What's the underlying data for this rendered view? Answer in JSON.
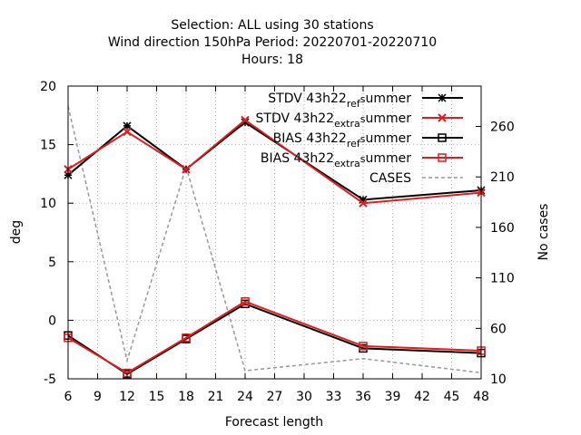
{
  "chart_data": {
    "type": "line",
    "title_lines": [
      "Selection: ALL using    30 stations",
      "Wind direction 150hPa   Period: 20220701-20220710",
      "Hours:  18"
    ],
    "xlabel": "Forecast length",
    "ylabel": "deg",
    "y2label": "No cases",
    "xlim": [
      6,
      48
    ],
    "ylim": [
      -5,
      20
    ],
    "y2lim": [
      10,
      300
    ],
    "xticks": [
      6,
      9,
      12,
      15,
      18,
      21,
      24,
      27,
      30,
      33,
      36,
      39,
      42,
      45,
      48
    ],
    "yticks": [
      -5,
      0,
      5,
      10,
      15,
      20
    ],
    "y2ticks": [
      10,
      60,
      110,
      160,
      210,
      260
    ],
    "grid": true,
    "legend_position": "top-right",
    "x": [
      6,
      12,
      18,
      24,
      36,
      48
    ],
    "series": [
      {
        "name": "STDV 43h22_ref_summer",
        "legend_parts": [
          "STDV 43h22",
          "ref",
          "s",
          "ummer"
        ],
        "color": "#000000",
        "marker": "star",
        "axis": "left",
        "values": [
          12.4,
          16.6,
          12.9,
          16.9,
          10.3,
          11.1
        ]
      },
      {
        "name": "STDV 43h22_extra_summer",
        "legend_parts": [
          "STDV 43h22",
          "extra",
          "s",
          "ummer"
        ],
        "color": "#e41a1c",
        "marker": "x",
        "axis": "left",
        "values": [
          12.9,
          16.1,
          12.9,
          17.1,
          10.0,
          10.9
        ]
      },
      {
        "name": "BIAS 43h22_ref_summer",
        "legend_parts": [
          "BIAS 43h22",
          "ref",
          "s",
          "ummer"
        ],
        "color": "#000000",
        "marker": "square",
        "axis": "left",
        "values": [
          -1.3,
          -4.6,
          -1.6,
          1.4,
          -2.4,
          -2.8
        ]
      },
      {
        "name": "BIAS 43h22_extra_summer",
        "legend_parts": [
          "BIAS 43h22",
          "extra",
          "s",
          "ummer"
        ],
        "color": "#e41a1c",
        "marker": "square",
        "axis": "left",
        "values": [
          -1.5,
          -4.5,
          -1.5,
          1.6,
          -2.2,
          -2.6
        ]
      },
      {
        "name": "CASES",
        "legend_parts": [
          "CASES"
        ],
        "color": "#999999",
        "marker": "none",
        "dashed": true,
        "axis": "right",
        "values": [
          280,
          28,
          220,
          18,
          30,
          16
        ]
      }
    ]
  }
}
